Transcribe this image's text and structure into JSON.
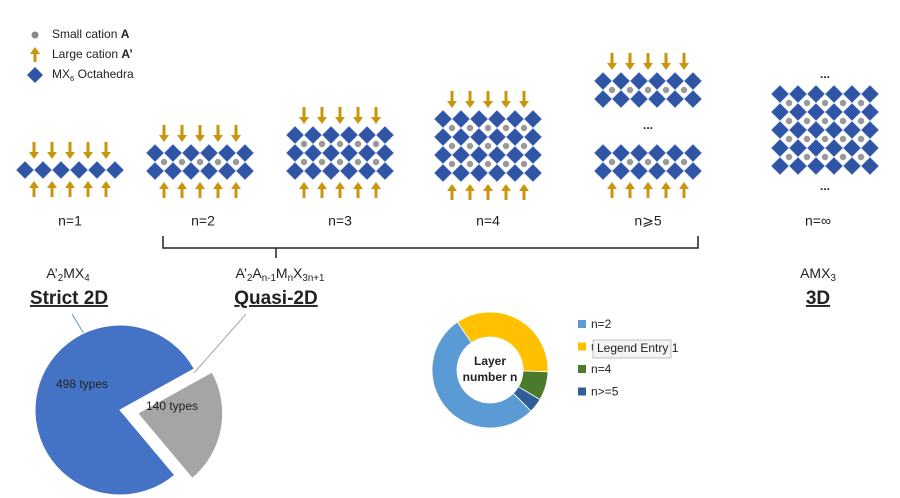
{
  "legend": [
    {
      "segments": [
        {
          "text": "Small cation "
        },
        {
          "text": "A",
          "bold": true
        }
      ]
    },
    {
      "segments": [
        {
          "text": "Large cation "
        },
        {
          "text": "A’",
          "bold": true
        }
      ]
    },
    {
      "segments": [
        {
          "text": "MX"
        },
        {
          "text": "6",
          "sub": true
        },
        {
          "text": " Octahedra"
        }
      ]
    }
  ],
  "structures": [
    {
      "label": "n=1"
    },
    {
      "label": "n=2"
    },
    {
      "label": "n=3"
    },
    {
      "label": "n=4"
    },
    {
      "label": "n⩾5"
    },
    {
      "label": "n=∞"
    }
  ],
  "ellipsis": "...",
  "groups": [
    {
      "formula": [
        {
          "text": "A’"
        },
        {
          "text": "2",
          "sub": true
        },
        {
          "text": "MX"
        },
        {
          "text": "4",
          "sub": true
        }
      ],
      "title": "Strict 2D"
    },
    {
      "formula": [
        {
          "text": "A’"
        },
        {
          "text": "2",
          "sub": true
        },
        {
          "text": "A"
        },
        {
          "text": "n-1",
          "sub": true
        },
        {
          "text": "M"
        },
        {
          "text": "n",
          "sub": true
        },
        {
          "text": "X"
        },
        {
          "text": "3n+1",
          "sub": true
        }
      ],
      "title": "Quasi-2D"
    },
    {
      "formula": [
        {
          "text": "AMX"
        },
        {
          "text": "3",
          "sub": true
        }
      ],
      "title": "3D"
    }
  ],
  "chart_data": [
    {
      "type": "pie",
      "values": [
        498,
        140
      ],
      "value_labels": [
        "498 types",
        "140 types"
      ],
      "colors": [
        "#4472c4",
        "#a5a5a5"
      ]
    },
    {
      "type": "donut",
      "center_label": [
        "Layer",
        "number n"
      ],
      "categories": [
        "n=2",
        "n=3",
        "n=4",
        "n>=5"
      ],
      "values": [
        53,
        35,
        8,
        4
      ],
      "colors": [
        "#5b9bd5",
        "#ffc000",
        "#4b7a2c",
        "#2e5f99"
      ],
      "tooltip": "Legend Entry 1"
    }
  ]
}
